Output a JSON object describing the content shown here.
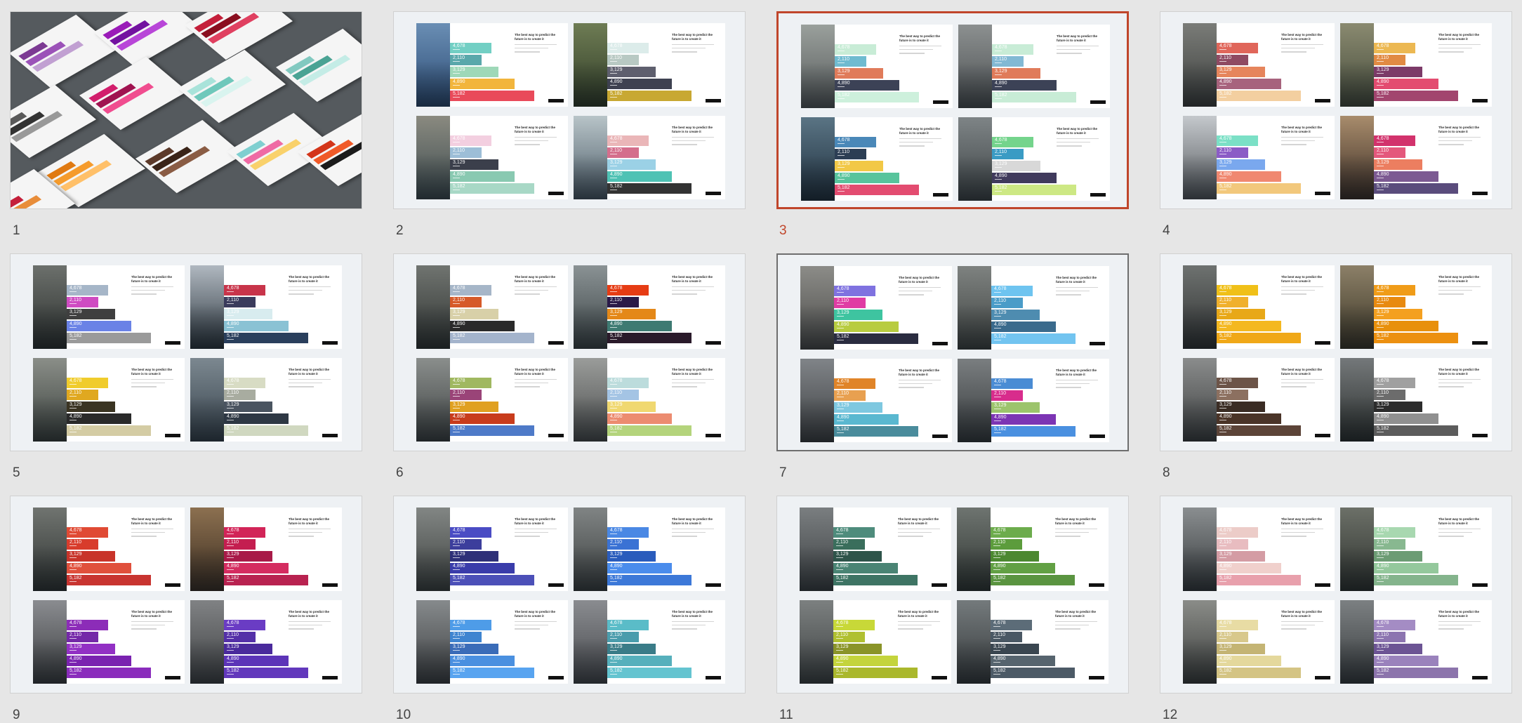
{
  "slide_heading": "The best way to predict the future is to create it",
  "bar_values": [
    "4,678",
    "2,110",
    "3,129",
    "4,890",
    "5,182"
  ],
  "slides": [
    {
      "number": "1",
      "state": "normal",
      "type": "collage",
      "iso_palettes": [
        [
          "#7c3a93",
          "#9b52b8",
          "#c1a0d2"
        ],
        [
          "#9a1bb8",
          "#7312a0",
          "#b846d8"
        ],
        [
          "#c41f3a",
          "#8a0e1f",
          "#e04060"
        ],
        [
          "#5a5a5a",
          "#333333",
          "#999999"
        ],
        [
          "#d21e6c",
          "#a01350",
          "#f04d8f"
        ],
        [
          "#a9e3da",
          "#6fc8bb",
          "#d9f4ef"
        ],
        [
          "#82c9c0",
          "#4aa394",
          "#c4ece6"
        ],
        [
          "#e07a12",
          "#f59b2c",
          "#ffc069"
        ],
        [
          "#5c3a2a",
          "#3a2418",
          "#8a5c44"
        ],
        [
          "#7fcfd0",
          "#ef6aa4",
          "#f9d16b"
        ],
        [
          "#d3351a",
          "#f05a28",
          "#1b1b1b"
        ],
        [
          "#7c3a93",
          "#c41f3a",
          "#e88d3a"
        ]
      ]
    },
    {
      "number": "2",
      "state": "normal",
      "cards": [
        {
          "photo": [
            "#2a4a73",
            "#6a8eb4"
          ],
          "bars": [
            "#72cfc4",
            "#5aa8ab",
            "#9ed8b8",
            "#f2b53c",
            "#e94a5a"
          ]
        },
        {
          "photo": [
            "#2f3b26",
            "#6e7c54"
          ],
          "bars": [
            "#dcecea",
            "#b8c9c3",
            "#5e5f6e",
            "#3e4151",
            "#c8a832"
          ]
        },
        {
          "photo": [
            "#3c4a4e",
            "#8a8a80"
          ],
          "bars": [
            "#f3cfe0",
            "#9dbed7",
            "#3b3f4b",
            "#89c9b1",
            "#a8d8c6"
          ]
        },
        {
          "photo": [
            "#4a5a66",
            "#b8c4c8"
          ],
          "bars": [
            "#eab6b8",
            "#d46e8c",
            "#9bd1e6",
            "#4fc2b4",
            "#333333"
          ]
        }
      ]
    },
    {
      "number": "3",
      "state": "selected",
      "cards": [
        {
          "photo": [
            "#55595a",
            "#9aa09c"
          ],
          "bars": [
            "#c8ecd6",
            "#6fbbd0",
            "#e07b5a",
            "#3c4256",
            "#cdf0dc"
          ]
        },
        {
          "photo": [
            "#4a4e50",
            "#8c9090"
          ],
          "bars": [
            "#c8ecd6",
            "#82b9d4",
            "#e07b5a",
            "#3c4256",
            "#c8ecd6"
          ]
        },
        {
          "photo": [
            "#1e2e3c",
            "#5a7484"
          ],
          "bars": [
            "#4a88b8",
            "#2c3e54",
            "#f2c846",
            "#58c49c",
            "#e34c70"
          ]
        },
        {
          "photo": [
            "#3c4244",
            "#7e8486"
          ],
          "bars": [
            "#74d48c",
            "#3a9bc4",
            "#d8d8d8",
            "#403a5c",
            "#cde884"
          ]
        }
      ]
    },
    {
      "number": "4",
      "state": "normal",
      "cards": [
        {
          "photo": [
            "#3c3e3c",
            "#7a7c78"
          ],
          "bars": [
            "#e0665a",
            "#8f4a62",
            "#e6855c",
            "#a7637d",
            "#f3cfa0"
          ]
        },
        {
          "photo": [
            "#444a3a",
            "#8a8a70"
          ],
          "bars": [
            "#ecb852",
            "#e18a43",
            "#7c3a68",
            "#e34c70",
            "#a2456e"
          ]
        },
        {
          "photo": [
            "#54585c",
            "#c4c8cc"
          ],
          "bars": [
            "#7be0c6",
            "#8b5cc6",
            "#7aa8ee",
            "#f08870",
            "#f2c87c"
          ]
        },
        {
          "photo": [
            "#3a2c24",
            "#a88c6c"
          ],
          "bars": [
            "#d2326c",
            "#e4587c",
            "#ec7e60",
            "#7c5a92",
            "#5a4c7c"
          ]
        }
      ]
    },
    {
      "number": "5",
      "state": "normal",
      "cards": [
        {
          "photo": [
            "#2a2e2c",
            "#6c706c"
          ],
          "bars": [
            "#a6b6c8",
            "#cf4bc2",
            "#3f3f3f",
            "#6a82e6",
            "#9a9a9a"
          ]
        },
        {
          "photo": [
            "#2a343c",
            "#b0b8c0"
          ],
          "bars": [
            "#c8344a",
            "#3a3b5c",
            "#d8ecef",
            "#8ac2d4",
            "#2a3f5c"
          ]
        },
        {
          "photo": [
            "#3a403c",
            "#8a8e88"
          ],
          "bars": [
            "#f0cc2c",
            "#e0a820",
            "#3a3422",
            "#2a2a2a",
            "#d4cca4"
          ]
        },
        {
          "photo": [
            "#34404a",
            "#7c8890"
          ],
          "bars": [
            "#d8dcc4",
            "#a8aca0",
            "#4a5460",
            "#2e3844",
            "#d0d8c0"
          ]
        }
      ]
    },
    {
      "number": "6",
      "state": "normal",
      "cards": [
        {
          "photo": [
            "#2e3230",
            "#707470"
          ],
          "bars": [
            "#a6b6c8",
            "#d65a28",
            "#d8d0a8",
            "#2a2a2a",
            "#a4b4cc"
          ]
        },
        {
          "photo": [
            "#3a4244",
            "#8a9294"
          ],
          "bars": [
            "#e63c14",
            "#2a1a48",
            "#e48818",
            "#3e7a72",
            "#2a1a2a"
          ]
        },
        {
          "photo": [
            "#3c4040",
            "#8a8e8c"
          ],
          "bars": [
            "#a0b860",
            "#9a4478",
            "#e0a020",
            "#c83c1c",
            "#4e7ac8"
          ]
        },
        {
          "photo": [
            "#4a4c4c",
            "#9a9c9a"
          ],
          "bars": [
            "#bcdcdc",
            "#a4c4e4",
            "#f0d870",
            "#ec8c70",
            "#b4d47c"
          ]
        }
      ]
    },
    {
      "number": "7",
      "state": "hovered",
      "cards": [
        {
          "photo": [
            "#4a4a48",
            "#8c8c88"
          ],
          "bars": [
            "#7f72e0",
            "#e03ca4",
            "#3ec4a0",
            "#b8cc40",
            "#2a2c40"
          ]
        },
        {
          "photo": [
            "#3e4240",
            "#7e8280"
          ],
          "bars": [
            "#6ec4f0",
            "#4a9cc8",
            "#4e8cb0",
            "#3a6a8c",
            "#72c4f0"
          ]
        },
        {
          "photo": [
            "#3c3e40",
            "#808488"
          ],
          "bars": [
            "#e08428",
            "#e8a050",
            "#7ec8e0",
            "#5ab8d0",
            "#4a8c9c"
          ]
        },
        {
          "photo": [
            "#34383a",
            "#7a7e80"
          ],
          "bars": [
            "#4a8cd4",
            "#d82c8c",
            "#9cc46c",
            "#7c34b4",
            "#4a90e0"
          ]
        }
      ]
    },
    {
      "number": "8",
      "state": "normal",
      "cards": [
        {
          "photo": [
            "#2e3030",
            "#6e7270"
          ],
          "bars": [
            "#f0c018",
            "#f0b02c",
            "#e8a818",
            "#f4b820",
            "#f0a818"
          ]
        },
        {
          "photo": [
            "#3a3424",
            "#8c8068"
          ],
          "bars": [
            "#f09c18",
            "#e88a10",
            "#f4a020",
            "#e8900c",
            "#ec9010"
          ]
        },
        {
          "photo": [
            "#3c3e3e",
            "#8a8c8c"
          ],
          "bars": [
            "#6c5448",
            "#8c7060",
            "#3a2c24",
            "#4a3428",
            "#5c4438"
          ]
        },
        {
          "photo": [
            "#2a2e2c",
            "#74787a"
          ],
          "bars": [
            "#a0a0a0",
            "#6c6c6c",
            "#2c2c2c",
            "#909090",
            "#5c5c5c"
          ]
        }
      ]
    },
    {
      "number": "9",
      "state": "normal",
      "cards": [
        {
          "photo": [
            "#2e3230",
            "#707470"
          ],
          "bars": [
            "#e04a34",
            "#d83c2c",
            "#c8342a",
            "#e0503c",
            "#c83430"
          ]
        },
        {
          "photo": [
            "#3a2c20",
            "#8c7050"
          ],
          "bars": [
            "#d22458",
            "#c41e50",
            "#a81a48",
            "#d42c60",
            "#b82250"
          ]
        },
        {
          "photo": [
            "#3a3c3e",
            "#8a8c90"
          ],
          "bars": [
            "#8c2cb8",
            "#7428a8",
            "#9230c4",
            "#7a22b0",
            "#8a2cbc"
          ]
        },
        {
          "photo": [
            "#3e4042",
            "#808284"
          ],
          "bars": [
            "#6a3cc4",
            "#5430a8",
            "#4a2a9c",
            "#5c34b8",
            "#6238bc"
          ]
        }
      ]
    },
    {
      "number": "10",
      "state": "normal",
      "cards": [
        {
          "photo": [
            "#3c403e",
            "#828684"
          ],
          "bars": [
            "#4a4cc4",
            "#3c3e9c",
            "#2e3078",
            "#3a3caa",
            "#4c50b8"
          ]
        },
        {
          "photo": [
            "#3a3e3e",
            "#808484"
          ],
          "bars": [
            "#4a88e4",
            "#3a72d4",
            "#2a5cbc",
            "#4a8cec",
            "#3c78d8"
          ]
        },
        {
          "photo": [
            "#3c3e40",
            "#868a8c"
          ],
          "bars": [
            "#4e9ce8",
            "#3e84d0",
            "#3a6cb8",
            "#4a90e0",
            "#58a4f0"
          ]
        },
        {
          "photo": [
            "#44464a",
            "#8a8c90"
          ],
          "bars": [
            "#5abcc8",
            "#4a9cac",
            "#3a7c88",
            "#56b0bc",
            "#64c4d0"
          ]
        }
      ]
    },
    {
      "number": "11",
      "state": "normal",
      "cards": [
        {
          "photo": [
            "#3a3e40",
            "#7a7e80"
          ],
          "bars": [
            "#4e8c7c",
            "#3a6e5c",
            "#2e544a",
            "#4a8474",
            "#3e7464"
          ]
        },
        {
          "photo": [
            "#2e3430",
            "#6e7470"
          ],
          "bars": [
            "#6cac4c",
            "#5c9c3c",
            "#4c8830",
            "#62a044",
            "#5a9440"
          ]
        },
        {
          "photo": [
            "#3c4040",
            "#7c8080"
          ],
          "bars": [
            "#c8d838",
            "#b0c030",
            "#8a9428",
            "#c4d43c",
            "#aab82c"
          ]
        },
        {
          "photo": [
            "#34383a",
            "#747a7c"
          ],
          "bars": [
            "#5c6c78",
            "#4a5864",
            "#3a4650",
            "#56646e",
            "#4c5a66"
          ]
        }
      ]
    },
    {
      "number": "12",
      "state": "normal",
      "cards": [
        {
          "photo": [
            "#34383a",
            "#8a8e90"
          ],
          "bars": [
            "#ecccc8",
            "#e8bcc0",
            "#d49ca4",
            "#f0d0cc",
            "#e8a0ac"
          ]
        },
        {
          "photo": [
            "#2c302c",
            "#6c7068"
          ],
          "bars": [
            "#a8d8b0",
            "#88b890",
            "#6c9c74",
            "#94c89c",
            "#84b48c"
          ]
        },
        {
          "photo": [
            "#3a3c3a",
            "#8a8c88"
          ],
          "bars": [
            "#e8dca4",
            "#d8c88c",
            "#c4b474",
            "#e4d89c",
            "#d4c484"
          ]
        },
        {
          "photo": [
            "#363a3c",
            "#7c8082"
          ],
          "bars": [
            "#a48cc4",
            "#8c74b0",
            "#6c5494",
            "#9a82bc",
            "#8c74ac"
          ]
        }
      ]
    }
  ]
}
